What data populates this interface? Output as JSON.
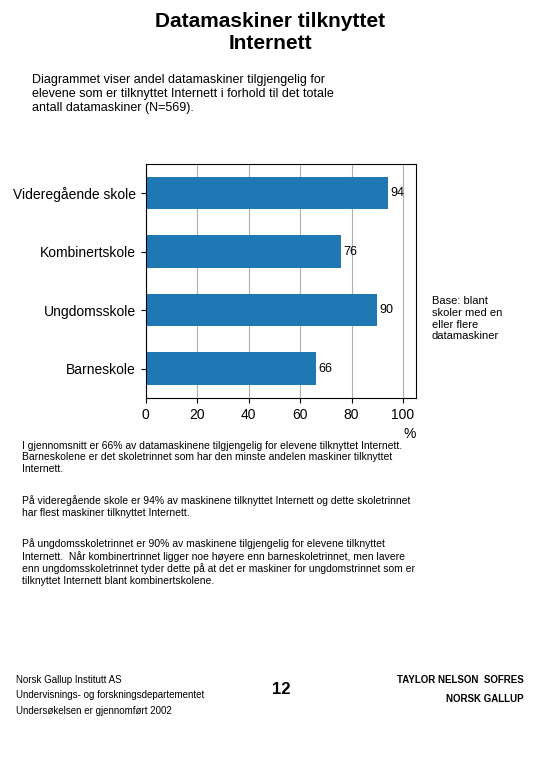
{
  "chart_data": {
    "type": "bar",
    "orientation": "horizontal",
    "title": "Datamaskiner tilknyttet\nInternett",
    "subtitle": "Diagrammet viser andel datamaskiner tilgjengelig for\nelevene som er tilknyttet Internett i forhold til det totale\nantall datamaskiner (N=569).",
    "categories": [
      "Videregående skole",
      "Kombinertskole",
      "Ungdomsskole",
      "Barneskole"
    ],
    "values": [
      94,
      76,
      90,
      66
    ],
    "xlabel": "%",
    "xlim": [
      0,
      105
    ],
    "xticks": [
      0,
      20,
      40,
      60,
      80,
      100
    ],
    "grid": true,
    "data_labels": true,
    "annotations": [
      "Base: blant\nskoler med en\neller flere\ndatamaskiner",
      "I gjennomsnitt er 66% av datamaskinene tilgjengelig for elevene tilknyttet Internett.\nBarneskolene er det skoletrinnet som har den minste andelen maskiner tilknyttet\nInternett.",
      "På videregående skole er 94% av maskinene tilknyttet Internett og dette skoletrinnet\nhar flest maskiner tilknyttet Internett.",
      "På ungdomsskoletrinnet er 90% av maskinene tilgjengelig for elevene tilknyttet\nInternett.  Når kombinertrinnet ligger noe høyere enn barneskoletrinnet, men lavere\nenn ungdomsskoletrinnet tyder dette på at det er maskiner for ungdomstrinnet som er\ntilknyttet Internett blant kombinertskolene.",
      "Norsk Gallup Institutt AS",
      "Undervisnings- og forskningsdepartementet",
      "Undersøkelsen er gjennomført 2002",
      "12",
      "TAYLOR NELSON  SOFRES",
      "NORSK GALLUP"
    ]
  }
}
